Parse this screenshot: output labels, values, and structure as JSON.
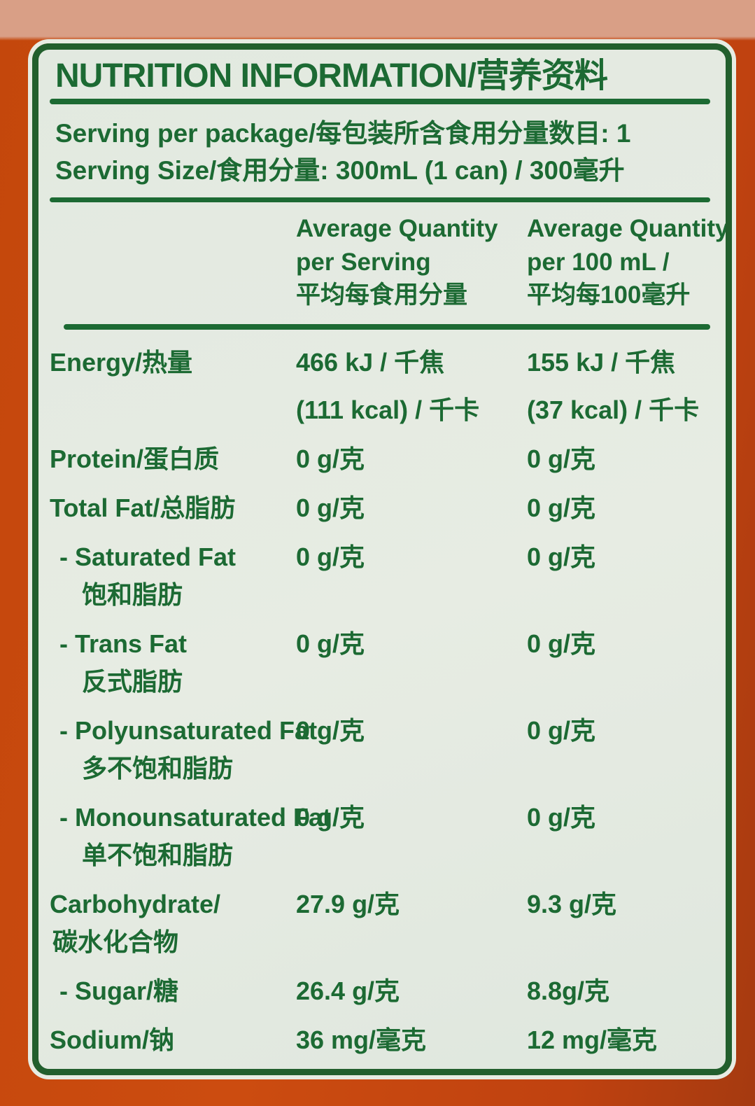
{
  "colors": {
    "accent_green": "#1c6a33",
    "border_green": "#225f2d",
    "label_background": "#e7ece3",
    "can_orange": "#cc4c10",
    "can_top_salmon": "#d99f86"
  },
  "header": {
    "title": "NUTRITION INFORMATION/营养资料"
  },
  "serving": {
    "line1": "Serving per package/每包装所含食用分量数目: 1",
    "line2": "Serving Size/食用分量: 300mL (1 can) / 300毫升"
  },
  "columns": {
    "per_serving": {
      "l1": "Average Quantity",
      "l2": "per Serving",
      "l3": "平均每食用分量"
    },
    "per_100ml": {
      "l1": "Average Quantity",
      "l2": "per 100 mL /",
      "l3": "平均每100毫升"
    }
  },
  "rows": [
    {
      "label": "Energy/热量",
      "v1": "466 kJ / 千焦",
      "v1b": "(111 kcal) / 千卡",
      "v2": "155 kJ / 千焦",
      "v2b": "(37 kcal) / 千卡"
    },
    {
      "label": "Protein/蛋白质",
      "v1": "0 g/克",
      "v2": "0 g/克"
    },
    {
      "label": "Total Fat/总脂肪",
      "v1": "0 g/克",
      "v2": "0 g/克"
    },
    {
      "label": "- Saturated Fat",
      "label2": "饱和脂肪",
      "v1": "0 g/克",
      "v2": "0 g/克"
    },
    {
      "label": "- Trans Fat",
      "label2": "反式脂肪",
      "v1": "0 g/克",
      "v2": "0 g/克"
    },
    {
      "label": "- Polyunsaturated Fat",
      "label2": "多不饱和脂肪",
      "v1": "0 g/克",
      "v2": "0 g/克"
    },
    {
      "label": "- Monounsaturated Fat",
      "label2": "单不饱和脂肪",
      "v1": "0 g/克",
      "v2": "0 g/克"
    },
    {
      "label": "Carbohydrate/",
      "label2": "碳水化合物",
      "v1": "27.9 g/克",
      "v2": "9.3 g/克"
    },
    {
      "label": "- Sugar/糖",
      "v1": "26.4 g/克",
      "v2": "8.8g/克"
    },
    {
      "label": "Sodium/钠",
      "v1": "36 mg/毫克",
      "v2": "12 mg/毫克"
    }
  ]
}
